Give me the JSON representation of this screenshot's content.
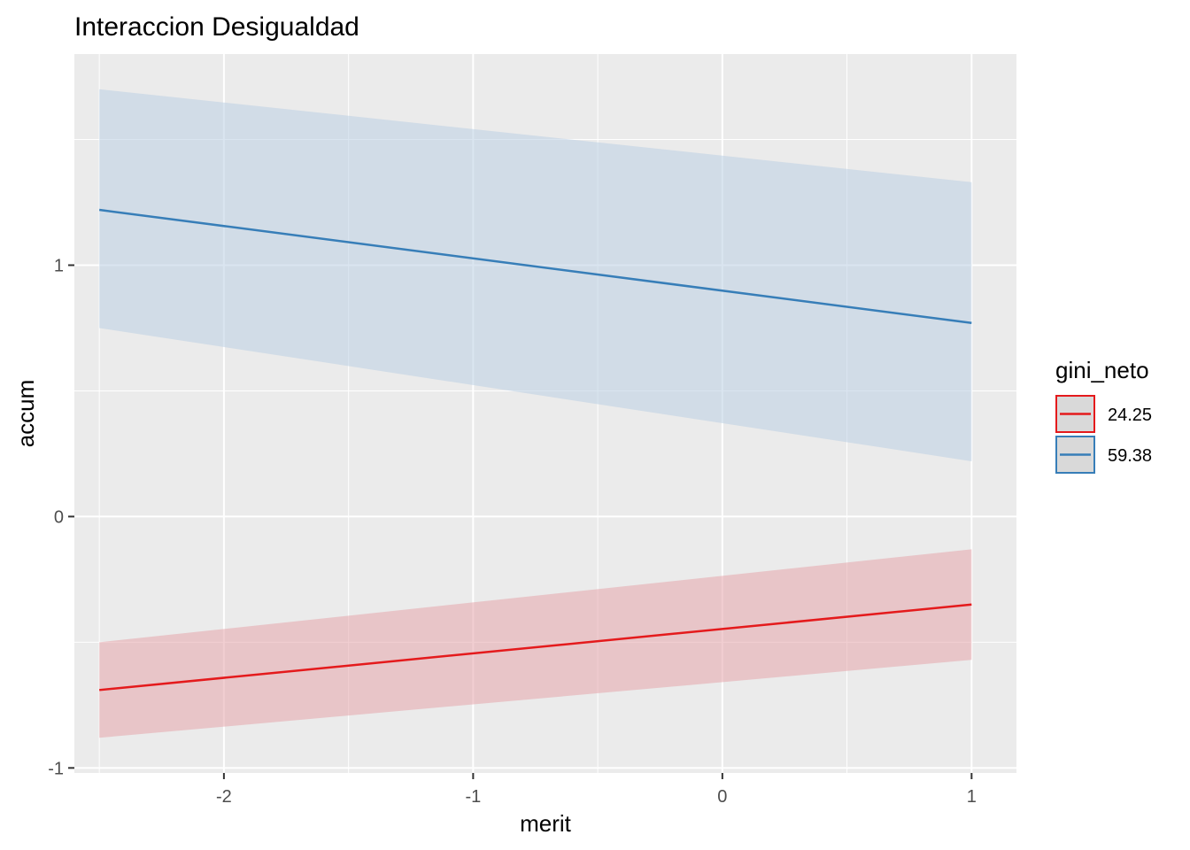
{
  "chart_data": {
    "type": "line",
    "title": "Interaccion Desigualdad",
    "xlabel": "merit",
    "ylabel": "accum",
    "xlim": [
      -2.6,
      1.18
    ],
    "ylim": [
      -1.02,
      1.84
    ],
    "x_ticks": [
      -2,
      -1,
      0,
      1
    ],
    "x_tick_labels": [
      "-2",
      "-1",
      "0",
      "1"
    ],
    "y_ticks": [
      -1,
      0,
      1
    ],
    "y_tick_labels": [
      "-1",
      "0",
      "1"
    ],
    "grid": true,
    "legend": {
      "title": "gini_neto",
      "position": "right"
    },
    "series": [
      {
        "name": "24.25",
        "color": "#e41a1c",
        "fill": "#e6a6ab",
        "x": [
          -2.5,
          1.0
        ],
        "y": [
          -0.69,
          -0.35
        ],
        "lower": [
          -0.88,
          -0.57
        ],
        "upper": [
          -0.5,
          -0.13
        ]
      },
      {
        "name": "59.38",
        "color": "#377eb8",
        "fill": "#bcd0e3",
        "x": [
          -2.5,
          1.0
        ],
        "y": [
          1.22,
          0.77
        ],
        "lower": [
          0.75,
          0.22
        ],
        "upper": [
          1.7,
          1.33
        ]
      }
    ]
  }
}
